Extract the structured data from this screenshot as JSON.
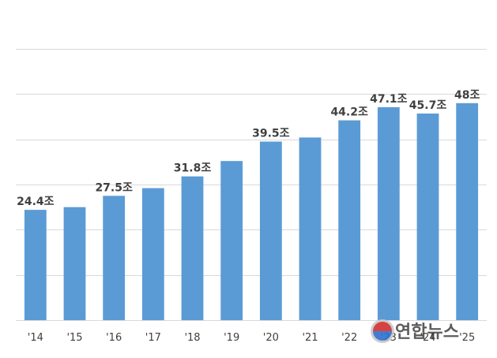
{
  "chart_data": {
    "type": "bar",
    "categories": [
      "'14",
      "'15",
      "'16",
      "'17",
      "'18",
      "'19",
      "'20",
      "'21",
      "'22",
      "'23",
      "'24",
      "'25"
    ],
    "values": [
      24.4,
      25.0,
      27.5,
      29.2,
      31.8,
      35.2,
      39.5,
      40.4,
      44.2,
      47.1,
      45.7,
      48.0
    ],
    "data_labels": [
      "24.4조",
      "",
      "27.5조",
      "",
      "31.8조",
      "",
      "39.5조",
      "",
      "44.2조",
      "47.1조",
      "45.7조",
      "48조"
    ],
    "ylim": [
      0,
      60
    ],
    "grid": true,
    "bar_color": "#5b9bd5",
    "title": "",
    "xlabel": "",
    "ylabel": ""
  },
  "watermark": {
    "text": "연합뉴스"
  }
}
